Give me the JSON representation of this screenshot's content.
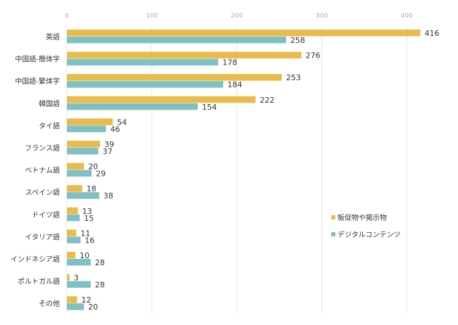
{
  "chart_data": {
    "type": "bar",
    "orientation": "horizontal",
    "title": "",
    "xlabel": "",
    "ylabel": "",
    "xlim": [
      0,
      420
    ],
    "xticks": [
      0,
      100,
      200,
      300,
      400
    ],
    "grid": true,
    "legend_position": "right",
    "categories": [
      "英語",
      "中国語-簡体字",
      "中国語-繁体字",
      "韓国語",
      "タイ語",
      "フランス語",
      "ベトナム語",
      "スペイン語",
      "ドイツ語",
      "イタリア語",
      "インドネシア語",
      "ポルトガル語",
      "その他"
    ],
    "series": [
      {
        "name": "販促物や掲示物",
        "color": "#e8bb4a",
        "values": [
          416,
          276,
          253,
          222,
          54,
          39,
          20,
          18,
          13,
          11,
          10,
          3,
          12
        ]
      },
      {
        "name": "デジタルコンテンツ",
        "color": "#7fc0c4",
        "values": [
          258,
          178,
          184,
          154,
          46,
          37,
          29,
          38,
          15,
          16,
          28,
          28,
          20
        ]
      }
    ]
  }
}
